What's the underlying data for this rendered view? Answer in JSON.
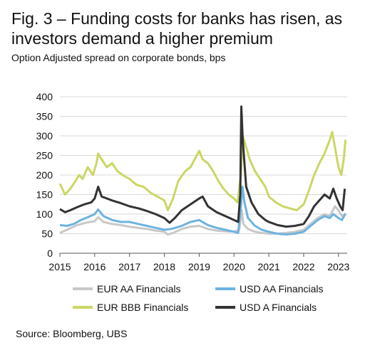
{
  "title": "Fig. 3 – Funding costs for banks has risen, as investors demand a higher premium",
  "subtitle": "Option Adjusted spread on corporate bonds, bps",
  "source": "Source: Bloomberg, UBS",
  "chart_data": {
    "type": "line",
    "ylim": [
      0,
      400
    ],
    "xlim": [
      2015,
      2023.25
    ],
    "y_ticks": [
      "0",
      "50",
      "100",
      "150",
      "200",
      "250",
      "300",
      "350",
      "400"
    ],
    "x_ticks": [
      "2015",
      "2016",
      "2017",
      "2018",
      "2019",
      "2020",
      "2021",
      "2022",
      "2023"
    ],
    "grid": true,
    "legend_position": "bottom",
    "series": [
      {
        "name": "EUR AA Financials",
        "color": "#c8c8c8",
        "points": [
          [
            2015.0,
            52
          ],
          [
            2015.2,
            60
          ],
          [
            2015.5,
            72
          ],
          [
            2015.75,
            78
          ],
          [
            2016.0,
            82
          ],
          [
            2016.1,
            92
          ],
          [
            2016.25,
            80
          ],
          [
            2016.5,
            75
          ],
          [
            2016.75,
            72
          ],
          [
            2017.0,
            68
          ],
          [
            2017.25,
            65
          ],
          [
            2017.5,
            62
          ],
          [
            2017.75,
            58
          ],
          [
            2018.0,
            55
          ],
          [
            2018.1,
            48
          ],
          [
            2018.25,
            52
          ],
          [
            2018.5,
            62
          ],
          [
            2018.75,
            68
          ],
          [
            2019.0,
            70
          ],
          [
            2019.25,
            62
          ],
          [
            2019.5,
            58
          ],
          [
            2019.75,
            56
          ],
          [
            2020.0,
            55
          ],
          [
            2020.15,
            60
          ],
          [
            2020.22,
            110
          ],
          [
            2020.27,
            75
          ],
          [
            2020.4,
            62
          ],
          [
            2020.6,
            55
          ],
          [
            2020.8,
            52
          ],
          [
            2021.0,
            50
          ],
          [
            2021.25,
            50
          ],
          [
            2021.5,
            52
          ],
          [
            2021.75,
            55
          ],
          [
            2022.0,
            60
          ],
          [
            2022.2,
            75
          ],
          [
            2022.4,
            90
          ],
          [
            2022.6,
            100
          ],
          [
            2022.75,
            95
          ],
          [
            2022.9,
            120
          ],
          [
            2023.0,
            110
          ],
          [
            2023.1,
            95
          ],
          [
            2023.2,
            100
          ]
        ]
      },
      {
        "name": "USD AA Financials",
        "color": "#6db3e0",
        "points": [
          [
            2015.0,
            72
          ],
          [
            2015.2,
            70
          ],
          [
            2015.4,
            75
          ],
          [
            2015.6,
            85
          ],
          [
            2015.8,
            92
          ],
          [
            2016.0,
            100
          ],
          [
            2016.1,
            112
          ],
          [
            2016.25,
            95
          ],
          [
            2016.5,
            85
          ],
          [
            2016.75,
            80
          ],
          [
            2017.0,
            80
          ],
          [
            2017.25,
            75
          ],
          [
            2017.5,
            70
          ],
          [
            2017.75,
            65
          ],
          [
            2018.0,
            60
          ],
          [
            2018.2,
            62
          ],
          [
            2018.5,
            70
          ],
          [
            2018.75,
            80
          ],
          [
            2019.0,
            85
          ],
          [
            2019.25,
            72
          ],
          [
            2019.5,
            65
          ],
          [
            2019.75,
            60
          ],
          [
            2020.0,
            55
          ],
          [
            2020.12,
            52
          ],
          [
            2020.2,
            120
          ],
          [
            2020.24,
            170
          ],
          [
            2020.3,
            130
          ],
          [
            2020.4,
            90
          ],
          [
            2020.6,
            70
          ],
          [
            2020.8,
            60
          ],
          [
            2021.0,
            55
          ],
          [
            2021.25,
            50
          ],
          [
            2021.5,
            48
          ],
          [
            2021.75,
            50
          ],
          [
            2022.0,
            55
          ],
          [
            2022.2,
            70
          ],
          [
            2022.4,
            85
          ],
          [
            2022.6,
            95
          ],
          [
            2022.75,
            90
          ],
          [
            2022.85,
            100
          ],
          [
            2023.0,
            90
          ],
          [
            2023.1,
            85
          ],
          [
            2023.2,
            102
          ]
        ]
      },
      {
        "name": "EUR BBB Financials",
        "color": "#ccd664",
        "points": [
          [
            2015.0,
            178
          ],
          [
            2015.15,
            150
          ],
          [
            2015.3,
            165
          ],
          [
            2015.45,
            185
          ],
          [
            2015.55,
            200
          ],
          [
            2015.65,
            190
          ],
          [
            2015.8,
            220
          ],
          [
            2015.95,
            200
          ],
          [
            2016.05,
            230
          ],
          [
            2016.1,
            255
          ],
          [
            2016.2,
            240
          ],
          [
            2016.35,
            220
          ],
          [
            2016.5,
            230
          ],
          [
            2016.65,
            210
          ],
          [
            2016.8,
            200
          ],
          [
            2017.0,
            190
          ],
          [
            2017.2,
            175
          ],
          [
            2017.4,
            170
          ],
          [
            2017.6,
            155
          ],
          [
            2017.8,
            145
          ],
          [
            2018.0,
            135
          ],
          [
            2018.1,
            110
          ],
          [
            2018.25,
            140
          ],
          [
            2018.4,
            185
          ],
          [
            2018.6,
            210
          ],
          [
            2018.75,
            220
          ],
          [
            2018.9,
            245
          ],
          [
            2019.0,
            262
          ],
          [
            2019.1,
            240
          ],
          [
            2019.25,
            230
          ],
          [
            2019.4,
            210
          ],
          [
            2019.55,
            185
          ],
          [
            2019.7,
            165
          ],
          [
            2019.85,
            150
          ],
          [
            2020.0,
            140
          ],
          [
            2020.1,
            130
          ],
          [
            2020.2,
            200
          ],
          [
            2020.25,
            300
          ],
          [
            2020.32,
            280
          ],
          [
            2020.45,
            240
          ],
          [
            2020.6,
            210
          ],
          [
            2020.75,
            190
          ],
          [
            2020.9,
            170
          ],
          [
            2021.0,
            145
          ],
          [
            2021.2,
            130
          ],
          [
            2021.4,
            120
          ],
          [
            2021.6,
            115
          ],
          [
            2021.8,
            110
          ],
          [
            2022.0,
            125
          ],
          [
            2022.15,
            160
          ],
          [
            2022.3,
            200
          ],
          [
            2022.45,
            230
          ],
          [
            2022.6,
            255
          ],
          [
            2022.75,
            290
          ],
          [
            2022.82,
            310
          ],
          [
            2022.92,
            260
          ],
          [
            2023.0,
            220
          ],
          [
            2023.08,
            200
          ],
          [
            2023.15,
            240
          ],
          [
            2023.2,
            290
          ]
        ]
      },
      {
        "name": "USD A Financials",
        "color": "#333333",
        "points": [
          [
            2015.0,
            113
          ],
          [
            2015.15,
            105
          ],
          [
            2015.3,
            110
          ],
          [
            2015.5,
            118
          ],
          [
            2015.7,
            125
          ],
          [
            2015.9,
            130
          ],
          [
            2016.0,
            140
          ],
          [
            2016.1,
            170
          ],
          [
            2016.2,
            145
          ],
          [
            2016.35,
            140
          ],
          [
            2016.5,
            135
          ],
          [
            2016.75,
            128
          ],
          [
            2017.0,
            120
          ],
          [
            2017.25,
            115
          ],
          [
            2017.5,
            108
          ],
          [
            2017.75,
            100
          ],
          [
            2018.0,
            90
          ],
          [
            2018.15,
            78
          ],
          [
            2018.3,
            90
          ],
          [
            2018.5,
            110
          ],
          [
            2018.75,
            125
          ],
          [
            2019.0,
            140
          ],
          [
            2019.1,
            145
          ],
          [
            2019.25,
            120
          ],
          [
            2019.5,
            105
          ],
          [
            2019.75,
            95
          ],
          [
            2020.0,
            85
          ],
          [
            2020.12,
            80
          ],
          [
            2020.18,
            150
          ],
          [
            2020.21,
            375
          ],
          [
            2020.25,
            290
          ],
          [
            2020.35,
            170
          ],
          [
            2020.5,
            130
          ],
          [
            2020.7,
            100
          ],
          [
            2020.9,
            85
          ],
          [
            2021.0,
            80
          ],
          [
            2021.25,
            72
          ],
          [
            2021.5,
            68
          ],
          [
            2021.75,
            70
          ],
          [
            2022.0,
            75
          ],
          [
            2022.15,
            95
          ],
          [
            2022.3,
            120
          ],
          [
            2022.45,
            135
          ],
          [
            2022.6,
            150
          ],
          [
            2022.75,
            140
          ],
          [
            2022.85,
            165
          ],
          [
            2022.95,
            140
          ],
          [
            2023.05,
            120
          ],
          [
            2023.12,
            110
          ],
          [
            2023.18,
            165
          ]
        ]
      }
    ]
  }
}
